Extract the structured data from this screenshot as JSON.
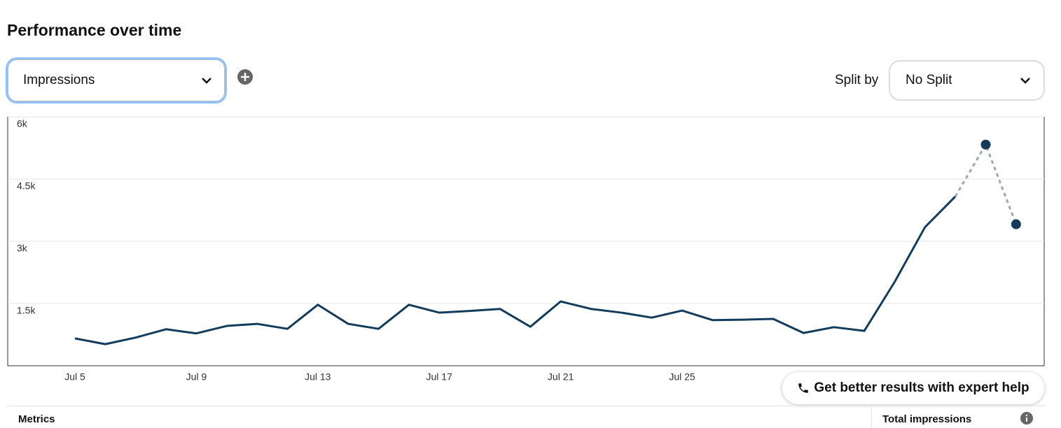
{
  "header": {
    "title": "Performance over time"
  },
  "controls": {
    "metric": "Impressions",
    "split_label": "Split by",
    "split_value": "No Split"
  },
  "help_button": "Get better results with expert help",
  "table": {
    "columns": [
      "Metrics",
      "Total impressions"
    ]
  },
  "chart_data": {
    "type": "line",
    "categories": [
      "Jul 5",
      null,
      null,
      null,
      "Jul 9",
      null,
      null,
      null,
      "Jul 13",
      null,
      null,
      null,
      "Jul 17",
      null,
      null,
      null,
      "Jul 21",
      null,
      null,
      null,
      "Jul 25",
      null,
      null,
      null,
      null,
      null,
      null,
      null,
      null,
      null,
      null,
      null
    ],
    "values": [
      660,
      520,
      680,
      880,
      780,
      960,
      1010,
      890,
      1470,
      1010,
      890,
      1470,
      1280,
      1320,
      1370,
      940,
      1550,
      1370,
      1280,
      1160,
      1330,
      1100,
      1110,
      1130,
      790,
      930,
      840,
      2020,
      3340,
      4080,
      5330,
      3410
    ],
    "color": "#133b5c",
    "dashed_from": 29,
    "markers_from": 30,
    "ylim": [
      0,
      6000
    ],
    "yticks": [
      {
        "value": 1500,
        "label": "1.5k"
      },
      {
        "value": 3000,
        "label": "3k"
      },
      {
        "value": 4500,
        "label": "4.5k"
      },
      {
        "value": 6000,
        "label": "6k"
      }
    ],
    "grid": true
  }
}
